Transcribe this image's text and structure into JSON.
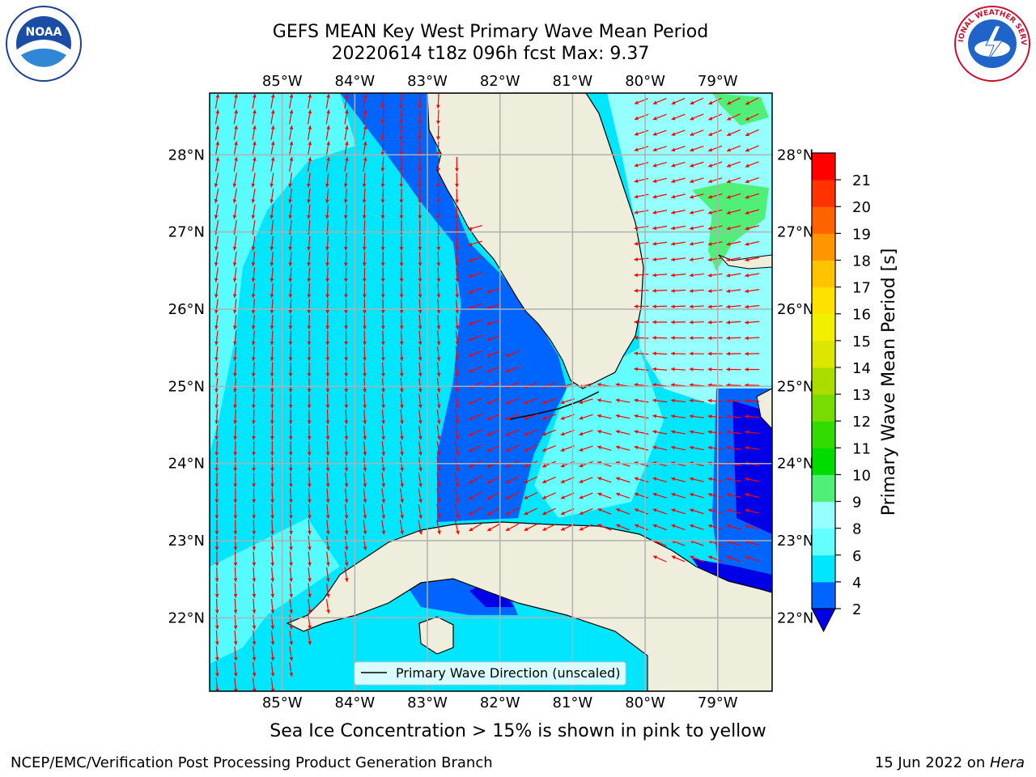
{
  "title": {
    "line1": "GEFS MEAN Key West Primary Wave Mean Period",
    "line2": "20220614 t18z 096h fcst   Max: 9.37"
  },
  "logos": {
    "left": {
      "icon": "noaa-logo",
      "text": "NOAA"
    },
    "right": {
      "icon": "nws-logo",
      "text": "NATIONAL WEATHER SERVICE"
    }
  },
  "map": {
    "lon_ticks": [
      "85°W",
      "84°W",
      "83°W",
      "82°W",
      "81°W",
      "80°W",
      "79°W"
    ],
    "lat_ticks": [
      "28°N",
      "27°N",
      "26°N",
      "25°N",
      "24°N",
      "23°N",
      "22°N"
    ],
    "lon_range": [
      -86.0,
      -78.25
    ],
    "lat_range": [
      21.05,
      28.8
    ],
    "legend_label": "Primary Wave Direction (unscaled)",
    "arrow_color": "#ff0000",
    "land_color": "#efeedd"
  },
  "colorbar": {
    "label": "Primary Wave Mean Period [s]",
    "ticks": [
      "2",
      "4",
      "6",
      "8",
      "9",
      "10",
      "11",
      "12",
      "13",
      "14",
      "15",
      "16",
      "17",
      "18",
      "19",
      "20",
      "21"
    ],
    "colors": [
      "#0000e6",
      "#0064ff",
      "#00e6ff",
      "#64ffff",
      "#96ffff",
      "#50f078",
      "#00dc00",
      "#32dc00",
      "#78dc00",
      "#aadc00",
      "#dce600",
      "#f0f000",
      "#ffe100",
      "#ffc300",
      "#ff9600",
      "#ff6400",
      "#ff3200",
      "#ff0000"
    ],
    "under_color": "#0000e6"
  },
  "note": "Sea Ice Concentration > 15% is shown in pink to yellow",
  "footer": {
    "left": "NCEP/EMC/Verification Post Processing Product Generation Branch",
    "right_date": "15 Jun 2022 on ",
    "right_host": "Hera"
  }
}
